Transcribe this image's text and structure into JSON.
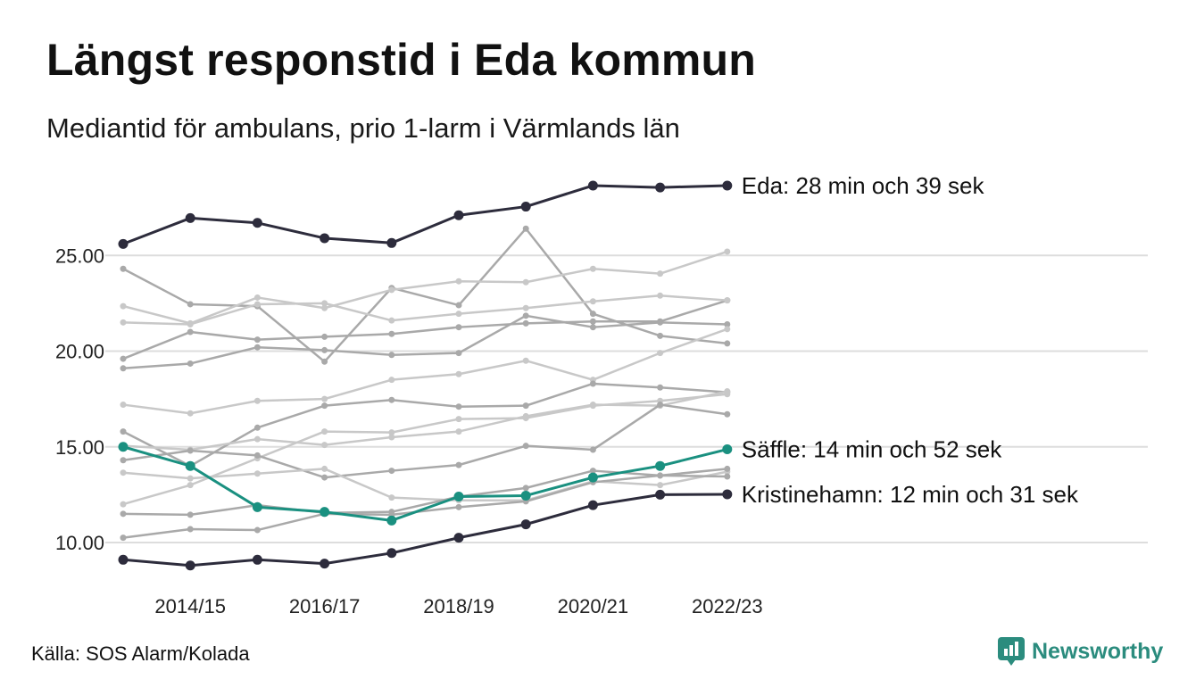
{
  "header": {
    "title": "Längst responstid i Eda kommun",
    "subtitle": "Mediantid för ambulans, prio 1-larm i Värmlands län"
  },
  "footer": {
    "source": "Källa: SOS Alarm/Kolada",
    "brand": "Newsworthy"
  },
  "colors": {
    "highlight_dark": "#2d2c3c",
    "highlight_teal": "#1a9080",
    "gray_mid": "#a9a9a9",
    "gray_light": "#c8c8c8",
    "grid": "#dddddd",
    "brand": "#2b8c7e"
  },
  "chart_data": {
    "type": "line",
    "title": "Längst responstid i Eda kommun",
    "subtitle": "Mediantid för ambulans, prio 1-larm i Värmlands län",
    "x": [
      "2013/14",
      "2014/15",
      "2015/16",
      "2016/17",
      "2017/18",
      "2018/19",
      "2019/20",
      "2020/21",
      "2021/22",
      "2022/23"
    ],
    "x_tick_labels": [
      "2014/15",
      "2016/17",
      "2018/19",
      "2020/21",
      "2022/23"
    ],
    "y_ticks": [
      "10.00",
      "15.00",
      "20.00",
      "25.00"
    ],
    "ylim": [
      9.0,
      30.0
    ],
    "grid": true,
    "series": [
      {
        "name": "Eda",
        "highlight": "dark",
        "end_label": "Eda: 28 min och 39 sek",
        "values": [
          25.6,
          26.95,
          26.7,
          25.9,
          25.65,
          27.1,
          27.55,
          28.65,
          28.55,
          28.65
        ]
      },
      {
        "name": "Säffle",
        "highlight": "teal",
        "end_label": "Säffle: 14 min och 52 sek",
        "values": [
          15.0,
          14.0,
          11.85,
          11.6,
          11.15,
          12.4,
          12.45,
          13.4,
          14.0,
          14.87
        ]
      },
      {
        "name": "Kristinehamn",
        "highlight": "dark",
        "end_label": "Kristinehamn: 12 min och 31 sek",
        "values": [
          9.1,
          8.8,
          9.1,
          8.9,
          9.45,
          10.25,
          10.95,
          11.95,
          12.5,
          12.52
        ]
      },
      {
        "tone": "mid",
        "values": [
          24.3,
          22.45,
          22.35,
          19.45,
          23.3,
          22.4,
          26.4,
          21.95,
          20.8,
          20.4
        ]
      },
      {
        "tone": "mid",
        "values": [
          19.6,
          21.0,
          20.6,
          20.75,
          20.9,
          21.25,
          21.45,
          21.55,
          21.55,
          22.65
        ]
      },
      {
        "tone": "mid",
        "values": [
          19.1,
          19.35,
          20.2,
          20.05,
          19.8,
          19.9,
          21.85,
          21.25,
          21.5,
          21.4
        ]
      },
      {
        "tone": "light",
        "values": [
          22.35,
          21.45,
          22.8,
          22.25,
          23.2,
          23.65,
          23.6,
          24.3,
          24.05,
          25.2
        ]
      },
      {
        "tone": "light",
        "values": [
          21.5,
          21.4,
          22.45,
          22.5,
          21.6,
          21.95,
          22.25,
          22.6,
          22.9,
          22.65
        ]
      },
      {
        "tone": "light",
        "values": [
          17.2,
          16.75,
          17.4,
          17.5,
          18.5,
          18.8,
          19.5,
          18.5,
          19.9,
          21.15
        ]
      },
      {
        "tone": "mid",
        "values": [
          15.8,
          14.0,
          16.0,
          17.15,
          17.45,
          17.1,
          17.15,
          18.3,
          18.1,
          17.85
        ]
      },
      {
        "tone": "light",
        "values": [
          15.05,
          14.85,
          15.4,
          15.1,
          15.5,
          15.8,
          16.6,
          17.2,
          17.15,
          17.9
        ]
      },
      {
        "tone": "light",
        "values": [
          12.0,
          13.0,
          14.4,
          15.8,
          15.75,
          16.45,
          16.5,
          17.15,
          17.4,
          17.75
        ]
      },
      {
        "tone": "mid",
        "values": [
          14.3,
          14.8,
          14.55,
          13.4,
          13.75,
          14.05,
          15.05,
          14.85,
          17.2,
          16.7
        ]
      },
      {
        "tone": "light",
        "values": [
          13.65,
          13.35,
          13.6,
          13.85,
          12.35,
          12.2,
          12.2,
          13.2,
          13.0,
          13.7
        ]
      },
      {
        "tone": "mid",
        "values": [
          11.5,
          11.45,
          11.95,
          11.55,
          11.6,
          12.4,
          12.85,
          13.75,
          13.5,
          13.85
        ]
      },
      {
        "tone": "mid",
        "values": [
          10.25,
          10.7,
          10.65,
          11.5,
          11.45,
          11.85,
          12.15,
          13.15,
          13.5,
          13.45
        ]
      }
    ]
  }
}
